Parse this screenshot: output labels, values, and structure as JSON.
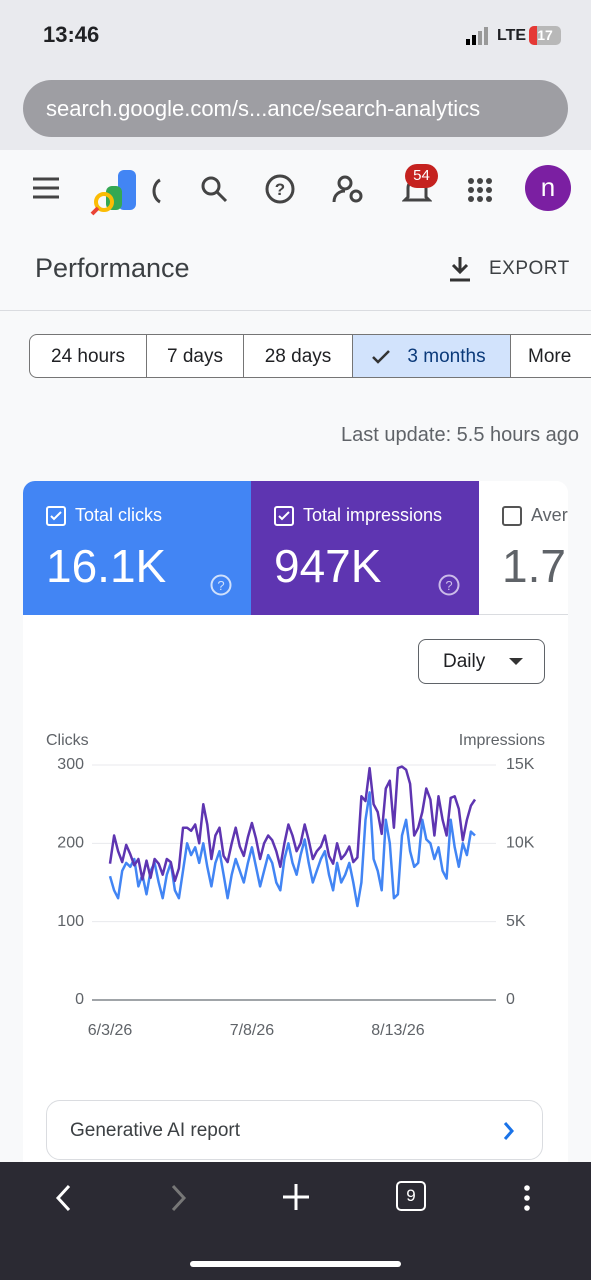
{
  "status_bar": {
    "time": "13:46",
    "network": "LTE",
    "battery": 17
  },
  "address_bar": {
    "url": "search.google.com/s...ance/search-analytics"
  },
  "toolbar": {
    "notification_count": 54,
    "avatar": "n"
  },
  "header": {
    "title": "Performance",
    "export": "EXPORT"
  },
  "date_filters": [
    "24 hours",
    "7 days",
    "28 days",
    "3 months",
    "More"
  ],
  "last_update": "Last update: 5.5 hours ago",
  "metric_cards": [
    {
      "label": "Total clicks",
      "value": "16.1K"
    },
    {
      "label": "Total impressions",
      "value": "947K"
    },
    {
      "label": "Aver",
      "value": "1.7"
    }
  ],
  "granularity": "Daily",
  "chart_data": {
    "type": "line",
    "y_label": "Clicks",
    "y2_label": "Impressions",
    "categories": [
      "6/3/26",
      null,
      null,
      null,
      null,
      null,
      null,
      null,
      null,
      null,
      null,
      null,
      null,
      null,
      null,
      null,
      null,
      null,
      null,
      null,
      null,
      null,
      null,
      null,
      null,
      null,
      null,
      null,
      null,
      null,
      null,
      null,
      null,
      null,
      null,
      "7/8/26",
      null,
      null,
      null,
      null,
      null,
      null,
      null,
      null,
      null,
      null,
      null,
      null,
      null,
      null,
      null,
      null,
      null,
      null,
      null,
      null,
      null,
      null,
      null,
      null,
      null,
      null,
      null,
      null,
      null,
      null,
      null,
      null,
      null,
      null,
      null,
      "8/13/26",
      null,
      null,
      null,
      null,
      null,
      null,
      null,
      null,
      null,
      null,
      null,
      null,
      null,
      null,
      null,
      null,
      null,
      null,
      null
    ],
    "series": [
      {
        "name": "Clicks",
        "color": "#4285f4",
        "values": [
          158,
          140,
          130,
          165,
          175,
          170,
          180,
          145,
          160,
          135,
          165,
          175,
          150,
          130,
          160,
          175,
          140,
          130,
          165,
          200,
          185,
          195,
          175,
          200,
          170,
          145,
          175,
          190,
          160,
          130,
          160,
          180,
          165,
          150,
          175,
          195,
          170,
          145,
          165,
          185,
          175,
          150,
          140,
          180,
          200,
          175,
          160,
          185,
          205,
          175,
          150,
          165,
          180,
          190,
          160,
          140,
          175,
          150,
          160,
          175,
          150,
          120,
          150,
          230,
          265,
          180,
          165,
          140,
          230,
          200,
          130,
          135,
          210,
          230,
          190,
          170,
          175,
          230,
          205,
          200,
          180,
          195,
          165,
          155,
          230,
          195,
          170,
          200,
          185,
          215,
          210
        ]
      },
      {
        "name": "Impressions",
        "color": "#5e35b1",
        "axis": "y2",
        "values": [
          8700,
          10500,
          9500,
          8800,
          9900,
          9300,
          8600,
          9000,
          7700,
          8900,
          7800,
          9000,
          8700,
          8000,
          9000,
          8800,
          7600,
          8400,
          11000,
          11000,
          10800,
          11200,
          10000,
          12500,
          11200,
          9000,
          10500,
          11000,
          9200,
          8800,
          10000,
          11000,
          9800,
          9200,
          10400,
          11300,
          10300,
          9000,
          10000,
          10500,
          10200,
          9500,
          8500,
          10000,
          11200,
          10500,
          9500,
          10000,
          11200,
          10200,
          9000,
          9500,
          9800,
          10500,
          9200,
          8700,
          10000,
          9000,
          9300,
          9800,
          8800,
          9100,
          13000,
          12700,
          14800,
          12500,
          12000,
          10600,
          13500,
          14000,
          11000,
          14800,
          14900,
          14700,
          13800,
          10500,
          11000,
          12000,
          13500,
          12800,
          10500,
          13000,
          11500,
          10500,
          12900,
          13000,
          12200,
          10200,
          11500,
          12400,
          12800
        ]
      }
    ],
    "ylim": [
      0,
      300
    ],
    "yticks": [
      0,
      100,
      200,
      300
    ],
    "y2lim": [
      0,
      15000
    ],
    "y2ticks": [
      0,
      {
        "value": 5000,
        "label": "5K"
      },
      {
        "value": 10000,
        "label": "10K"
      },
      {
        "value": 15000,
        "label": "15K"
      }
    ],
    "grid": true
  },
  "report_link": "Generative AI report",
  "bottom_bar": {
    "tab_count": 9
  }
}
